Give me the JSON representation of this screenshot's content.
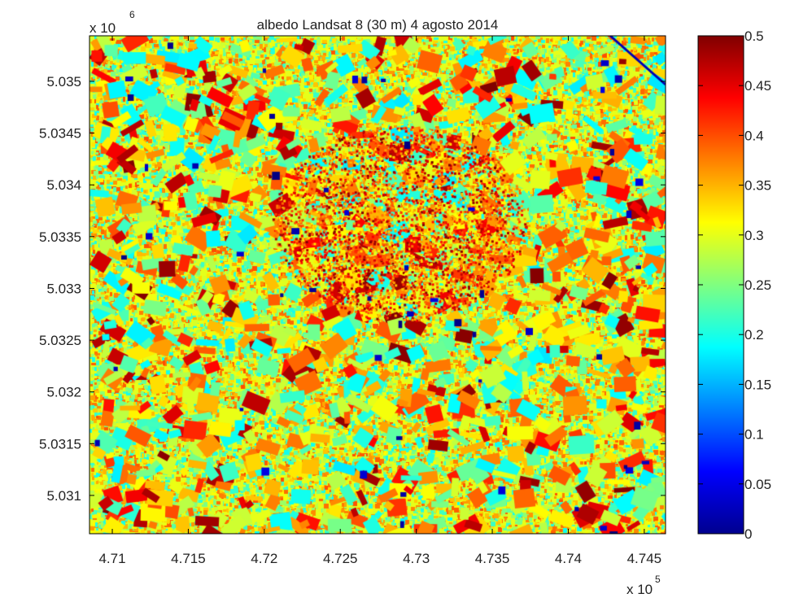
{
  "chart_data": {
    "type": "heatmap",
    "title": "albedo Landsat 8 (30 m) 4 agosto 2014",
    "x": {
      "ticks": [
        4.71,
        4.715,
        4.72,
        4.725,
        4.73,
        4.735,
        4.74,
        4.745
      ],
      "tick_labels": [
        "4.71",
        "4.715",
        "4.72",
        "4.725",
        "4.73",
        "4.735",
        "4.74",
        "4.745"
      ],
      "range": [
        4.7085,
        4.7464
      ],
      "multiplier": {
        "base": "x 10",
        "exponent": "5"
      }
    },
    "y": {
      "ticks": [
        5.031,
        5.0315,
        5.032,
        5.0325,
        5.033,
        5.0335,
        5.034,
        5.0345,
        5.035
      ],
      "tick_labels": [
        "5.031",
        "5.0315",
        "5.032",
        "5.0325",
        "5.033",
        "5.0335",
        "5.034",
        "5.0345",
        "5.035"
      ],
      "range": [
        5.03063,
        5.03544
      ],
      "multiplier": {
        "base": "x 10",
        "exponent": "6"
      }
    },
    "colorbar": {
      "colormap": "jet",
      "range": [
        0,
        0.5
      ],
      "ticks": [
        0,
        0.05,
        0.1,
        0.15,
        0.2,
        0.25,
        0.3,
        0.35,
        0.4,
        0.45,
        0.5
      ],
      "tick_labels": [
        "0",
        "0.05",
        "0.1",
        "0.15",
        "0.2",
        "0.25",
        "0.3",
        "0.35",
        "0.4",
        "0.45",
        "0.5"
      ]
    }
  }
}
